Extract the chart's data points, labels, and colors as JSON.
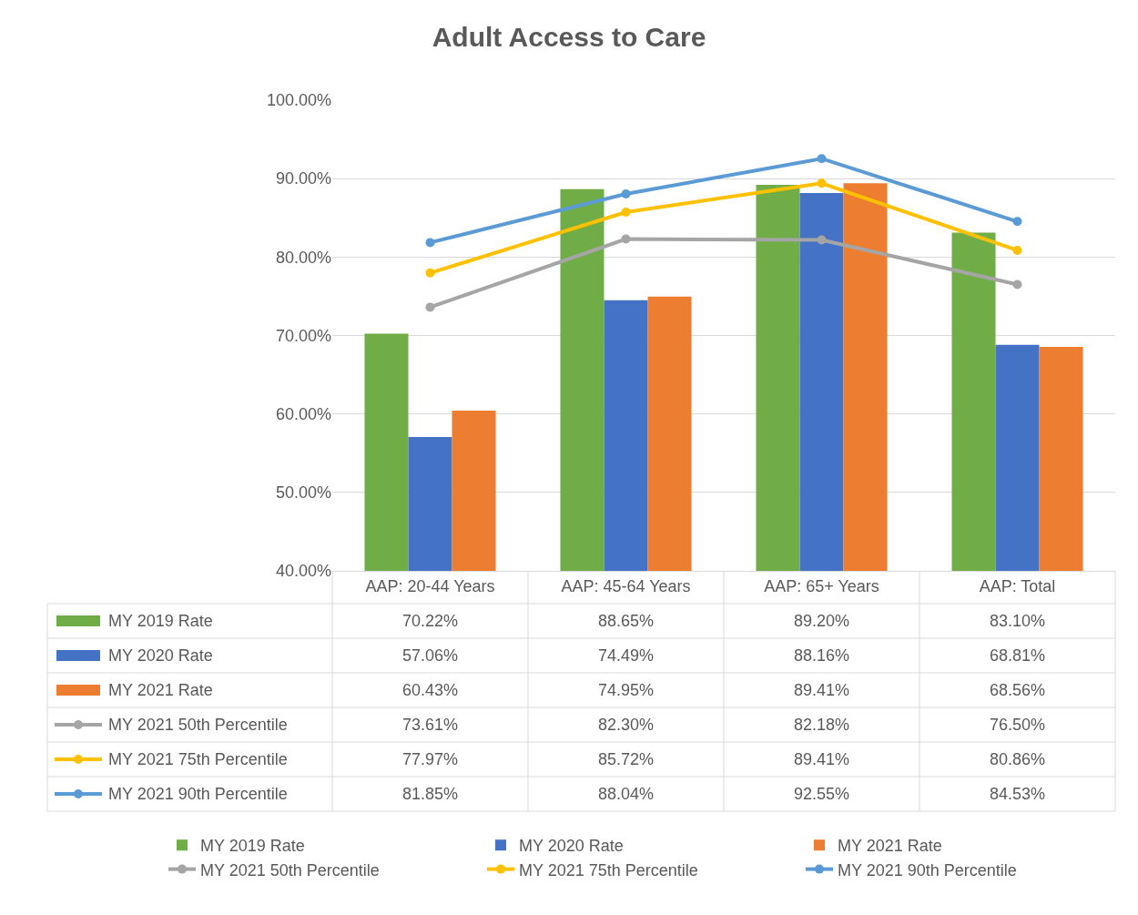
{
  "chart_data": {
    "type": "bar",
    "title": "Adult Access to Care",
    "categories": [
      "AAP: 20-44 Years",
      "AAP: 45-64 Years",
      "AAP: 65+ Years",
      "AAP: Total"
    ],
    "series": [
      {
        "name": "MY 2019 Rate",
        "color": "#70ad47",
        "values": [
          70.22,
          88.65,
          89.2,
          83.1
        ],
        "value_labels": [
          "70.22%",
          "88.65%",
          "89.20%",
          "83.10%"
        ]
      },
      {
        "name": "MY 2020 Rate",
        "color": "#4472c4",
        "values": [
          57.06,
          74.49,
          88.16,
          68.81
        ],
        "value_labels": [
          "57.06%",
          "74.49%",
          "88.16%",
          "68.81%"
        ]
      },
      {
        "name": "MY 2021 Rate",
        "color": "#ed7d31",
        "values": [
          60.43,
          74.95,
          89.41,
          68.56
        ],
        "value_labels": [
          "60.43%",
          "74.95%",
          "89.41%",
          "68.56%"
        ]
      },
      {
        "name": "MY 2021 50th Percentile",
        "type": "line",
        "color": "#a5a5a5",
        "values": [
          73.61,
          82.3,
          82.18,
          76.5
        ],
        "value_labels": [
          "73.61%",
          "82.30%",
          "82.18%",
          "76.50%"
        ]
      },
      {
        "name": "MY 2021 75th Percentile",
        "type": "line",
        "color": "#ffc000",
        "values": [
          77.97,
          85.72,
          89.41,
          80.86
        ],
        "value_labels": [
          "77.97%",
          "85.72%",
          "89.41%",
          "80.86%"
        ]
      },
      {
        "name": "MY 2021 90th Percentile",
        "type": "line",
        "color": "#5b9bd5",
        "values": [
          81.85,
          88.04,
          92.55,
          84.53
        ],
        "value_labels": [
          "81.85%",
          "88.04%",
          "92.55%",
          "84.53%"
        ]
      }
    ],
    "ylim": [
      40,
      100
    ],
    "yticks": [
      {
        "value": 40,
        "label": "40.00%"
      },
      {
        "value": 50,
        "label": "50.00%"
      },
      {
        "value": 60,
        "label": "60.00%"
      },
      {
        "value": 70,
        "label": "70.00%"
      },
      {
        "value": 80,
        "label": "80.00%"
      },
      {
        "value": 90,
        "label": "90.00%"
      },
      {
        "value": 100,
        "label": "100.00%"
      }
    ],
    "grid": "y",
    "legend": "bottom",
    "marker": "circle",
    "line_style": "solid"
  }
}
